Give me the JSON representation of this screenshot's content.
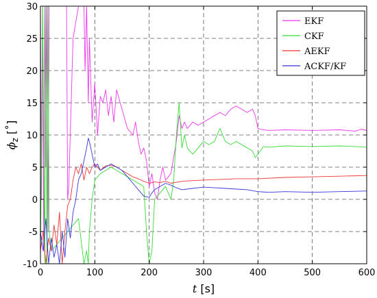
{
  "chart_data": {
    "type": "line",
    "xlabel": {
      "symbol": "t",
      "unit": " [s]"
    },
    "ylabel": {
      "symbol": "ϕ",
      "subscript": "z",
      "unit": " [˚]"
    },
    "xlim": [
      0,
      600
    ],
    "ylim": [
      -10,
      30
    ],
    "xticks": [
      0,
      100,
      200,
      300,
      400,
      500,
      600
    ],
    "yticks": [
      -10,
      -5,
      0,
      5,
      10,
      15,
      20,
      25,
      30
    ],
    "xtick_labels": [
      "0",
      "100",
      "200",
      "300",
      "400",
      "500",
      "600"
    ],
    "ytick_labels": [
      "-10",
      "-5",
      "0",
      "5",
      "10",
      "15",
      "20",
      "25",
      "30"
    ],
    "grid": true,
    "legend_position": "top-right",
    "series": [
      {
        "name": "EKF",
        "color": "#ee33ee",
        "x": [
          0,
          2,
          4,
          6,
          8,
          10,
          12,
          14,
          16,
          40,
          48,
          50,
          52,
          60,
          70,
          75,
          80,
          82,
          85,
          88,
          90,
          95,
          100,
          105,
          110,
          115,
          120,
          125,
          130,
          135,
          140,
          150,
          160,
          170,
          175,
          180,
          185,
          190,
          195,
          200,
          205,
          210,
          215,
          220,
          225,
          230,
          240,
          250,
          255,
          260,
          265,
          270,
          280,
          290,
          300,
          310,
          320,
          330,
          340,
          350,
          360,
          370,
          380,
          390,
          395,
          400,
          410,
          420,
          450,
          500,
          550,
          580,
          590,
          600
        ],
        "y": [
          30,
          0,
          30,
          -8,
          30,
          5,
          30,
          -5,
          30,
          30,
          30,
          0,
          2,
          25,
          30,
          30,
          30,
          20,
          30,
          15,
          25,
          12,
          18,
          10,
          16,
          15,
          17,
          13,
          16,
          12,
          17,
          14,
          11,
          10,
          12,
          9,
          7,
          8,
          6,
          2,
          4,
          1,
          0,
          3,
          5,
          3,
          4,
          9,
          13,
          11,
          12,
          11,
          12,
          11.5,
          12,
          12.5,
          13,
          13.5,
          13,
          14,
          14.5,
          14,
          13.5,
          14,
          13,
          11,
          10.8,
          10.7,
          10.8,
          10.7,
          10.8,
          10.6,
          10.9,
          10.7
        ]
      },
      {
        "name": "CKF",
        "color": "#33dd33",
        "x": [
          0,
          4,
          8,
          10,
          12,
          14,
          16,
          20,
          50,
          70,
          80,
          85,
          88,
          90,
          95,
          100,
          110,
          130,
          150,
          170,
          190,
          195,
          200,
          205,
          210,
          220,
          230,
          240,
          245,
          250,
          255,
          260,
          265,
          270,
          280,
          290,
          300,
          310,
          320,
          330,
          335,
          340,
          350,
          360,
          370,
          380,
          390,
          395,
          400,
          410,
          420,
          450,
          500,
          550,
          580,
          600
        ],
        "y": [
          -10,
          30,
          -10,
          30,
          -10,
          30,
          -5,
          -8,
          -5,
          -3,
          -10,
          -8,
          -10,
          -5,
          0,
          3,
          4,
          5,
          4,
          3,
          2,
          -5,
          -10,
          -8,
          0,
          1,
          2,
          0,
          3,
          10,
          15,
          8,
          10,
          8,
          7,
          8,
          9,
          8.5,
          9,
          11,
          10,
          9,
          8.5,
          9,
          8.5,
          8,
          7.5,
          6.5,
          7,
          8.2,
          8.1,
          8.3,
          8.2,
          8.3,
          8.2,
          8.1
        ]
      },
      {
        "name": "AEKF",
        "color": "#ee3333",
        "x": [
          0,
          5,
          10,
          15,
          20,
          25,
          30,
          35,
          40,
          45,
          50,
          55,
          60,
          65,
          70,
          75,
          80,
          85,
          90,
          95,
          100,
          110,
          120,
          130,
          140,
          150,
          160,
          170,
          180,
          190,
          200,
          210,
          220,
          230,
          240,
          260,
          280,
          300,
          330,
          360,
          400,
          450,
          500,
          550,
          600
        ],
        "y": [
          -8,
          -5,
          -10,
          -6,
          -8,
          -4,
          -7,
          -2,
          -10,
          -5,
          -1,
          0,
          3,
          5,
          4,
          5.5,
          3,
          5,
          4,
          5,
          5.5,
          4.5,
          5.2,
          5.3,
          5,
          4.5,
          4,
          3.5,
          3.2,
          2.8,
          2.5,
          2.7,
          2.6,
          2.8,
          2.5,
          2.8,
          2.9,
          3,
          3.1,
          3.2,
          3.2,
          3.4,
          3.5,
          3.6,
          3.7
        ]
      },
      {
        "name": "ACKF/KF",
        "color": "#3333dd",
        "x": [
          0,
          5,
          10,
          15,
          20,
          25,
          30,
          35,
          40,
          45,
          50,
          55,
          60,
          65,
          70,
          75,
          80,
          85,
          88,
          90,
          95,
          100,
          105,
          110,
          120,
          130,
          140,
          150,
          160,
          170,
          180,
          190,
          200,
          205,
          210,
          220,
          230,
          240,
          250,
          260,
          270,
          280,
          290,
          300,
          320,
          340,
          360,
          380,
          400,
          420,
          450,
          500,
          550,
          600
        ],
        "y": [
          -5,
          -8,
          -3,
          -10,
          -6,
          -9,
          -7,
          -10,
          -5,
          -9,
          -3,
          -6,
          -2,
          0,
          3,
          4,
          6,
          8,
          9.5,
          9,
          7,
          5,
          5.5,
          4.5,
          5,
          5.5,
          5,
          4.5,
          3.5,
          2.5,
          1.5,
          0.5,
          0.3,
          1,
          1.5,
          2,
          2.5,
          2.2,
          1.8,
          1.5,
          1.6,
          1.7,
          1.8,
          1.9,
          1.8,
          1.7,
          1.6,
          1.5,
          1.2,
          1.1,
          1.2,
          1.1,
          1.2,
          1.3
        ]
      }
    ]
  }
}
